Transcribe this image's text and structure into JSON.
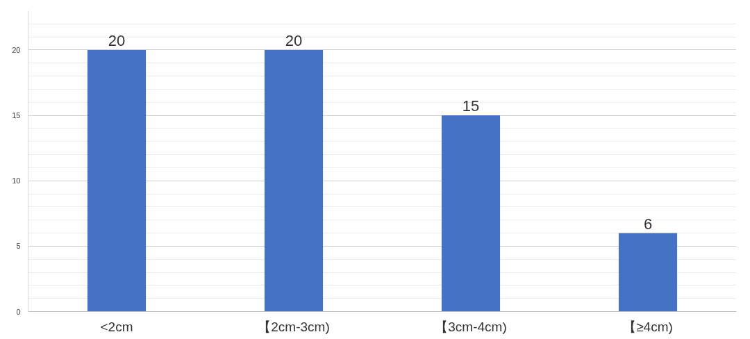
{
  "chart_data": {
    "type": "bar",
    "categories": [
      "<2cm",
      "【2cm-3cm)",
      "【3cm-4cm)",
      "【≥4cm)"
    ],
    "values": [
      20,
      20,
      15,
      6
    ],
    "color": "#4472c4",
    "ylim": [
      0,
      23
    ],
    "yticks": [
      0,
      5,
      10,
      15,
      20
    ],
    "grid": "y",
    "data_labels": true
  }
}
